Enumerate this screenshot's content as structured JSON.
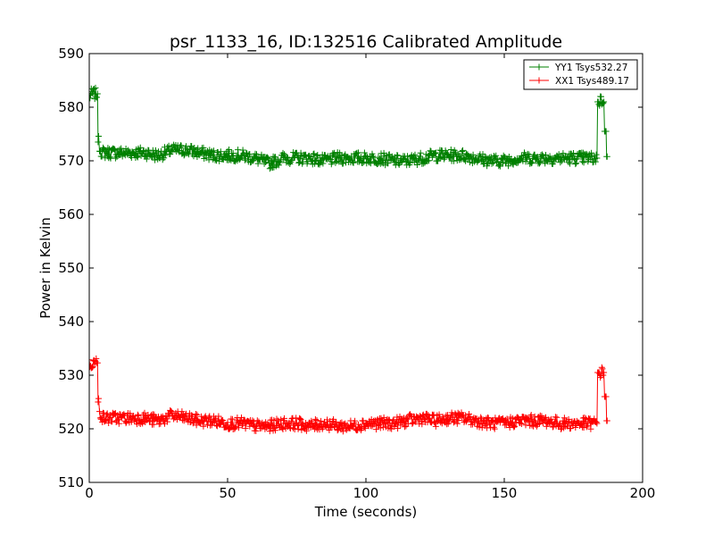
{
  "chart_data": {
    "type": "line",
    "title": "psr_1133_16, ID:132516 Calibrated Amplitude",
    "xlabel": "Time (seconds)",
    "ylabel": "Power in Kelvin",
    "xlim": [
      0,
      200
    ],
    "ylim": [
      510,
      590
    ],
    "xticks": [
      0,
      50,
      100,
      150,
      200
    ],
    "yticks": [
      510,
      520,
      530,
      540,
      550,
      560,
      570,
      580,
      590
    ],
    "grid": false,
    "legend_position": "top-right",
    "marker": "+",
    "series": [
      {
        "name": "YY1 Tsys532.27",
        "color": "#008000",
        "x": [
          0,
          1,
          2,
          3,
          3.4,
          4,
          5,
          7,
          10,
          15,
          20,
          25,
          30,
          35,
          40,
          45,
          50,
          55,
          60,
          65,
          70,
          75,
          80,
          85,
          90,
          95,
          100,
          105,
          110,
          115,
          120,
          125,
          130,
          135,
          140,
          145,
          150,
          155,
          160,
          165,
          170,
          175,
          180,
          183.5,
          184.2,
          185,
          186,
          186.8,
          187.2
        ],
        "y": [
          582,
          582.5,
          582.5,
          582.5,
          573.5,
          572,
          571.5,
          571.5,
          571.5,
          571.5,
          571.5,
          571,
          572,
          572,
          571.5,
          571,
          571,
          571,
          570.5,
          569.5,
          570.5,
          570.5,
          570.5,
          570,
          570.5,
          570.5,
          570.5,
          570.5,
          570,
          570,
          570.5,
          571,
          571,
          571,
          570.5,
          570,
          570,
          570.5,
          570.5,
          570.5,
          570.5,
          570.5,
          570.5,
          570.5,
          581,
          581.5,
          581,
          575.5,
          570.8
        ]
      },
      {
        "name": "XX1 Tsys489.17",
        "color": "#ff0000",
        "x": [
          0,
          1,
          2,
          3,
          3.4,
          4,
          5,
          7,
          10,
          15,
          20,
          25,
          30,
          35,
          40,
          45,
          50,
          55,
          60,
          65,
          70,
          75,
          80,
          85,
          90,
          95,
          100,
          105,
          110,
          115,
          120,
          125,
          130,
          135,
          140,
          145,
          150,
          155,
          160,
          165,
          170,
          175,
          180,
          183.5,
          184.2,
          185,
          186,
          186.8,
          187.2
        ],
        "y": [
          532,
          532.3,
          532.3,
          532.3,
          525,
          523,
          522,
          522,
          522,
          522,
          522,
          521.5,
          522.5,
          522,
          521.5,
          521.5,
          521,
          521,
          520.5,
          520.5,
          521,
          521,
          520.5,
          521,
          520.5,
          520.5,
          521,
          521,
          521,
          521.5,
          522,
          521.5,
          522,
          522,
          521.5,
          521,
          521,
          521.5,
          521.5,
          521.5,
          521,
          521,
          521,
          521,
          530.5,
          530.5,
          530.5,
          526,
          521.5
        ]
      }
    ]
  }
}
